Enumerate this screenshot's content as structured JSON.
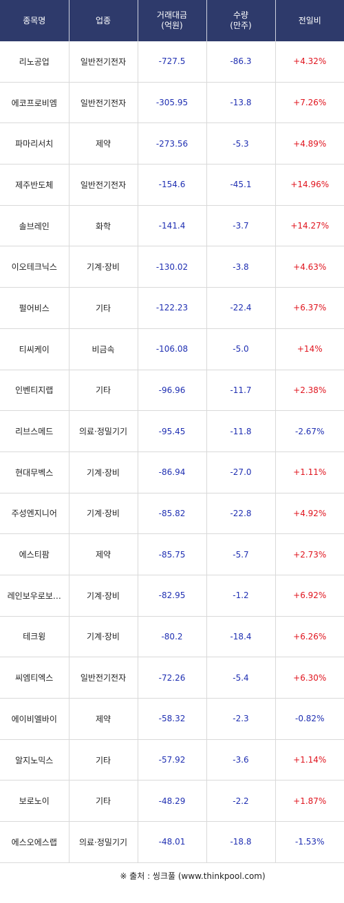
{
  "header": {
    "col1": "종목명",
    "col2": "업종",
    "col3_line1": "거래대금",
    "col3_line2": "(억원)",
    "col4_line1": "수량",
    "col4_line2": "(만주)",
    "col5": "전일비"
  },
  "rows": [
    {
      "name": "리노공업",
      "sector": "일반전기전자",
      "amount": "-727.5",
      "qty": "-86.3",
      "change": "+4.32%"
    },
    {
      "name": "에코프로비엠",
      "sector": "일반전기전자",
      "amount": "-305.95",
      "qty": "-13.8",
      "change": "+7.26%"
    },
    {
      "name": "파마리서치",
      "sector": "제약",
      "amount": "-273.56",
      "qty": "-5.3",
      "change": "+4.89%"
    },
    {
      "name": "제주반도체",
      "sector": "일반전기전자",
      "amount": "-154.6",
      "qty": "-45.1",
      "change": "+14.96%"
    },
    {
      "name": "솔브레인",
      "sector": "화학",
      "amount": "-141.4",
      "qty": "-3.7",
      "change": "+14.27%"
    },
    {
      "name": "이오테크닉스",
      "sector": "기계·장비",
      "amount": "-130.02",
      "qty": "-3.8",
      "change": "+4.63%"
    },
    {
      "name": "펄어비스",
      "sector": "기타",
      "amount": "-122.23",
      "qty": "-22.4",
      "change": "+6.37%"
    },
    {
      "name": "티씨케이",
      "sector": "비금속",
      "amount": "-106.08",
      "qty": "-5.0",
      "change": "+14%"
    },
    {
      "name": "인벤티지랩",
      "sector": "기타",
      "amount": "-96.96",
      "qty": "-11.7",
      "change": "+2.38%"
    },
    {
      "name": "리브스메드",
      "sector": "의료·정밀기기",
      "amount": "-95.45",
      "qty": "-11.8",
      "change": "-2.67%"
    },
    {
      "name": "현대무벡스",
      "sector": "기계·장비",
      "amount": "-86.94",
      "qty": "-27.0",
      "change": "+1.11%"
    },
    {
      "name": "주성엔지니어",
      "sector": "기계·장비",
      "amount": "-85.82",
      "qty": "-22.8",
      "change": "+4.92%"
    },
    {
      "name": "에스티팜",
      "sector": "제약",
      "amount": "-85.75",
      "qty": "-5.7",
      "change": "+2.73%"
    },
    {
      "name": "레인보우로보…",
      "sector": "기계·장비",
      "amount": "-82.95",
      "qty": "-1.2",
      "change": "+6.92%"
    },
    {
      "name": "테크윙",
      "sector": "기계·장비",
      "amount": "-80.2",
      "qty": "-18.4",
      "change": "+6.26%"
    },
    {
      "name": "씨엠티엑스",
      "sector": "일반전기전자",
      "amount": "-72.26",
      "qty": "-5.4",
      "change": "+6.30%"
    },
    {
      "name": "에이비엘바이",
      "sector": "제약",
      "amount": "-58.32",
      "qty": "-2.3",
      "change": "-0.82%"
    },
    {
      "name": "알지노믹스",
      "sector": "기타",
      "amount": "-57.92",
      "qty": "-3.6",
      "change": "+1.14%"
    },
    {
      "name": "보로노이",
      "sector": "기타",
      "amount": "-48.29",
      "qty": "-2.2",
      "change": "+1.87%"
    },
    {
      "name": "에스오에스랩",
      "sector": "의료·정밀기기",
      "amount": "-48.01",
      "qty": "-18.8",
      "change": "-1.53%"
    }
  ],
  "source": "※ 출처 : 씽크풀 (www.thinkpool.com)",
  "colors": {
    "header_bg": "#2e3a6b",
    "negative_value": "#1f2fb2",
    "positive_change": "#e0141e"
  }
}
